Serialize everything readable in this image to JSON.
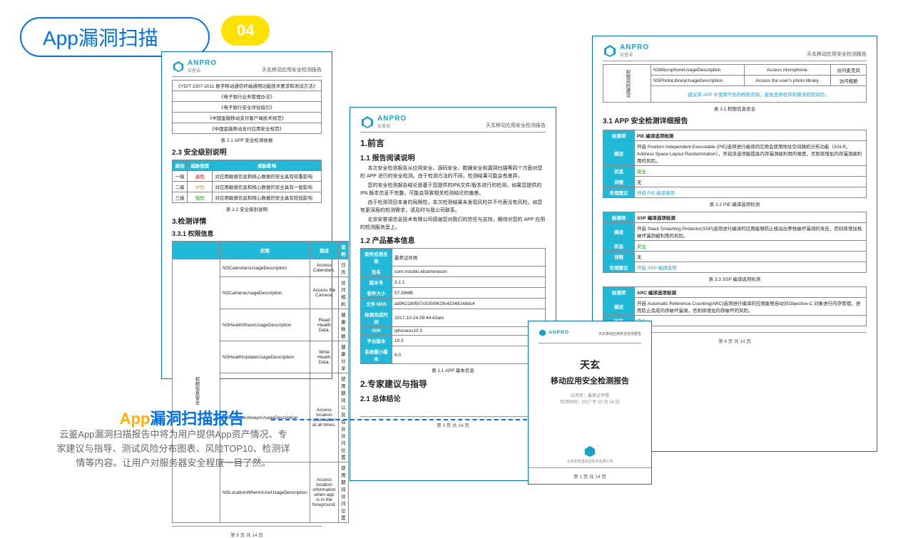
{
  "title": "App漏洞扫描",
  "badge": "04",
  "sub": {
    "hl": "App",
    "rest": "漏洞扫描报告"
  },
  "desc": "云鉴App漏洞扫描报告中将为用户提供App资产情况、专家建议与指导、测试风险分布图表、风险TOP10、检测详情等内容。让用户对服务器安全程度一目了然。",
  "logo": "ANPRO",
  "hdr_r": "天玄移动应用安全检测报告",
  "d1": {
    "regs": [
      "《YD/T 2307-2011 数字移动通信终端通用功能技术要求和测试方法》",
      "《电子银行业务管理办法》",
      "《电子银行安全评估指引》",
      "《中国金融移动支付客户端技术规范》",
      "《中国金融移动支付应用安全规范》"
    ],
    "regs_cap": "表 2.1 APP 安全检测依据",
    "s23": "2.3 安全级别说明",
    "lvl_h": [
      "级别",
      "威胁程度",
      "威胁影响"
    ],
    "lvls": [
      [
        "一级",
        "高危",
        "对应用敏感信息和核心数据的安全具有较重影响"
      ],
      [
        "二级",
        "中危",
        "对应用敏感信息和核心数据的安全具有一般影响"
      ],
      [
        "三级",
        "低危",
        "对应用敏感信息和核心数据的安全具有较低影响"
      ]
    ],
    "lvl_cap": "表 2.2 安全级别说明",
    "s3": "3.检测详情",
    "s331": "3.3.1 权限信息",
    "perm_h": [
      "权限",
      "描述",
      "说明"
    ],
    "side": "权限信息安全",
    "perms": [
      [
        "NSCalendarsUsageDescription",
        "Access Calendars.",
        "日历"
      ],
      [
        "NSCameraUsageDescription",
        "Access the Camera.",
        "访问相机"
      ],
      [
        "NSHealthShareUsageDescription",
        "Read Health Data.",
        "健康数据"
      ],
      [
        "NSHealthUpdateUsageDescription",
        "Write Health Data.",
        "健康分享"
      ],
      [
        "NSLocationAlwaysUsageDescription",
        "Access location information at all times.",
        "使用期间以及后台访问位置"
      ],
      [
        "NSLocationWhenInUseUsageDescription",
        "Access location information when app is in the foreground.",
        "使用期间访问位置"
      ]
    ],
    "pg": "第 8 页 共 14 页"
  },
  "d2": {
    "s1": "1.前言",
    "s11": "1.1 报告阅读说明",
    "p1": "本次安全检测报告从应用安全、源码安全、数据安全和漏洞扫描等四个方面对您的 APP 进行的安全检测。由于检测方法的不同，检测结果可能会有差异。",
    "p2": "您的安全检测报告结论是基于您提供的IPA文件/版本进行的检测，如果您提供的 IPA 版本信息不完整，可能会导致相关检测结论的偏差。",
    "p3": "由于检测项目本身的局限性，本次检测结果未发现风险并不代表没有风险。如您有更深层的检测需求，请及时与我公司联系。",
    "p4": "北京安普诺信息技术有限公司感谢您对我们的信任与支持，期待对您的 APP 应用的检测服务呈上。",
    "s12": "1.2 产品基本信息",
    "info": [
      [
        "软件应用名称",
        "最美证件照"
      ],
      [
        "包名",
        "com.vstudio.idcamerason"
      ],
      [
        "版本号",
        "3.1.1"
      ],
      [
        "软件大小",
        "57.39MB"
      ],
      [
        "文件 MD5",
        "ad962169507c5359f429c4334814ddc4"
      ],
      [
        "检测完成时间",
        "2017-10-24 09:44:43am"
      ],
      [
        "SDK",
        "iphoneos10.3"
      ],
      [
        "平台版本",
        "10.3"
      ],
      [
        "系统最小版本",
        "8.0"
      ]
    ],
    "info_cap": "表 1.1 APP 基本信息",
    "s2": "2.专家建议与指导",
    "s21": "2.1 总体结论",
    "pg": "第 3 页 共 14 页"
  },
  "d3": {
    "t1": "天玄",
    "t2": "移动应用安全检测报告",
    "meta1": "应用名：最美证件照",
    "meta2": "检测时间：2017 年 10 月 24 日",
    "pg": "第 1 页 共 14 页"
  },
  "d4": {
    "perm_rows": [
      [
        "NSMicrophoneUsageDescription",
        "Access microphone.",
        "访问麦克风"
      ],
      [
        "NSPhotoLibraryUsageDescription",
        "Access the user's photo library.",
        "访问相册"
      ]
    ],
    "side": "权限风险建议",
    "advice": "建议将 APP 中使用不到的权限去除，避免恶意程序利用该权限风险。",
    "perm_cap": "表 3.1 权限信息安全",
    "s31": "3.1 APP 安全检测详细报告",
    "items": [
      {
        "title": "PIE 编译选项检测",
        "desc": "开启 Position Independent Executable (PIE)选项进行编译的应用会使用地址空间随机分布功能（ASLR，Address Space Layout Randomization），开启该选项能提高内存漏洞被利用的难度，否则将增加内存漏洞被利用的风险。",
        "status": "安全",
        "detail": "无",
        "sugg": "开启 PIE 编译选项",
        "cap": "表 3.2 PIE 编译选项检测"
      },
      {
        "title": "SSP 编译选项检测",
        "desc": "开启 Stack Smashing Protector(SSP)选项进行编译的应用能够防止栈溢出等栈破坏漏洞的攻击，否则将增加栈破坏漏洞被利用的风险。",
        "status": "安全",
        "detail": "无",
        "sugg": "开启 SSP 编译选项",
        "cap": "表 3.3 SSP 编译选项检测"
      },
      {
        "title": "ARC 编译选项检测",
        "desc": "开启 Automatic Reference Counting(ARC)选项进行编译的应用能够自动对Objective-C 对象进行内存管理，进而防止造成内存破坏漏洞，否则将增加内存破坏的风险。",
        "status": "安全",
        "detail": "",
        "sugg": "",
        "cap": ""
      }
    ],
    "lbl": {
      "item": "检测项",
      "desc": "描述",
      "status": "状态",
      "detail": "详情",
      "sugg": "处理建议"
    },
    "pg": "第 6 页 共 14 页"
  }
}
